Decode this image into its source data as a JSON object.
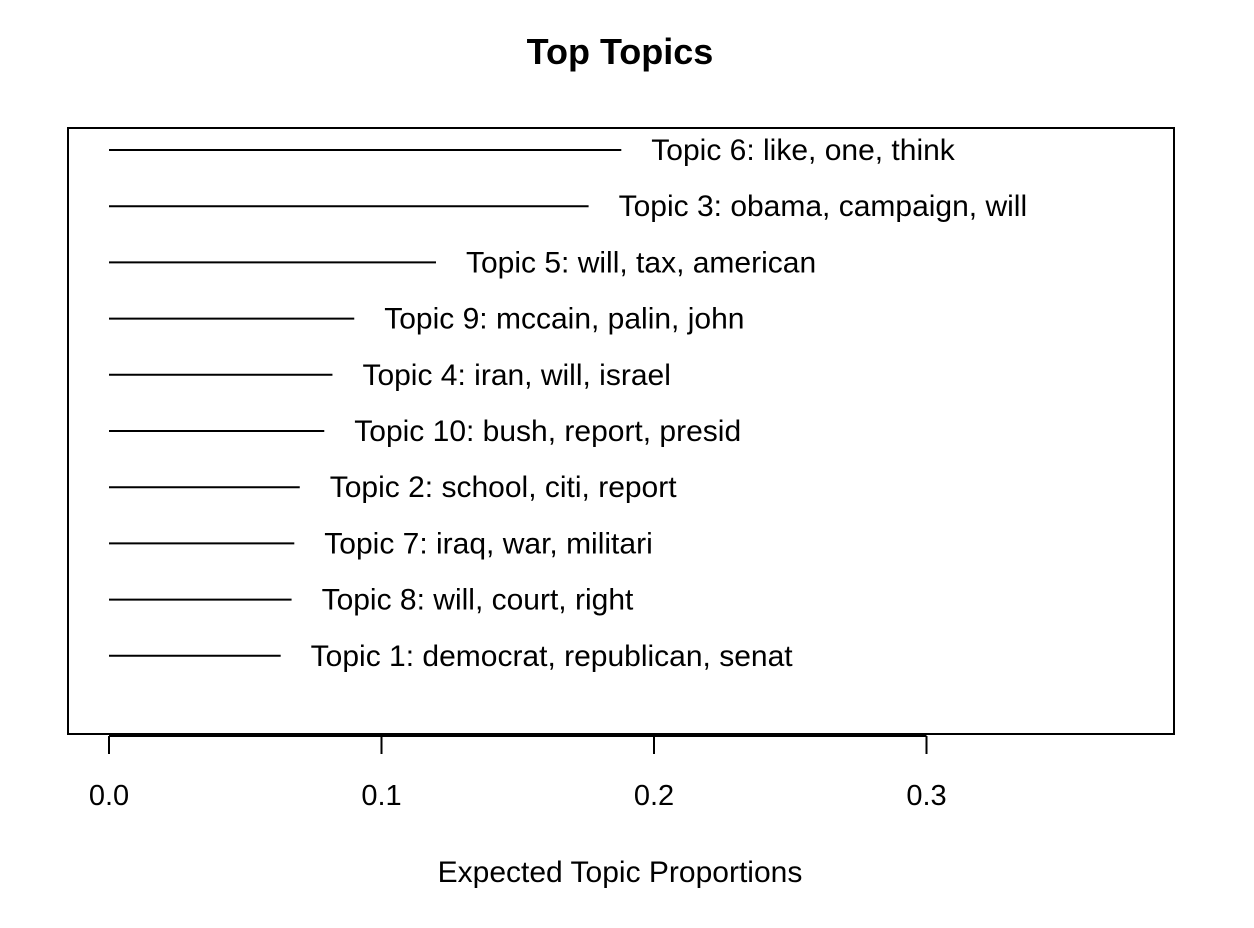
{
  "chart_data": {
    "type": "bar",
    "orientation": "horizontal",
    "title": "Top Topics",
    "xlabel": "Expected Topic Proportions",
    "ylabel": "",
    "xlim": [
      0,
      0.39
    ],
    "xticks": [
      0.0,
      0.1,
      0.2,
      0.3
    ],
    "xtick_labels": [
      "0.0",
      "0.1",
      "0.2",
      "0.3"
    ],
    "grid": false,
    "legend": "none",
    "categories": [
      "Topic 6: like, one, think",
      "Topic 3: obama, campaign, will",
      "Topic 5: will, tax, american",
      "Topic 9: mccain, palin, john",
      "Topic 4: iran, will, israel",
      "Topic 10: bush, report, presid",
      "Topic 2: school, citi, report",
      "Topic 7: iraq, war, militari",
      "Topic 8: will, court, right",
      "Topic 1: democrat, republican, senat"
    ],
    "values": [
      0.188,
      0.176,
      0.12,
      0.09,
      0.082,
      0.079,
      0.07,
      0.068,
      0.067,
      0.063
    ],
    "line_color": "#000000"
  }
}
